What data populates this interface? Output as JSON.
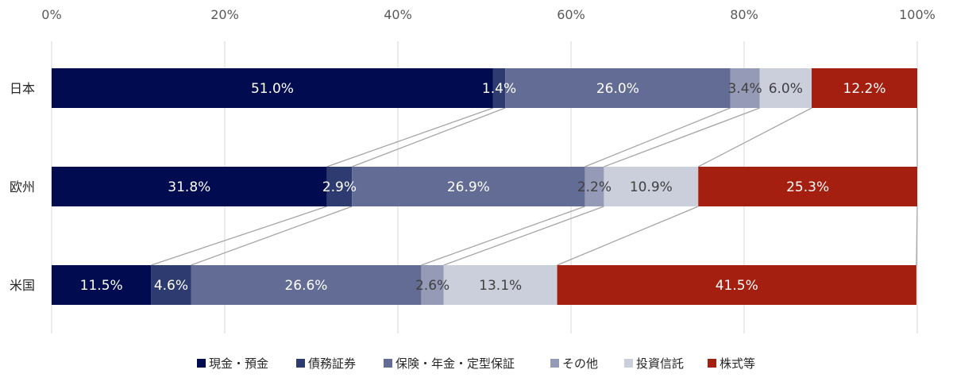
{
  "chart_data": {
    "type": "bar",
    "orientation": "horizontal",
    "stacked": "percent",
    "categories": [
      "日本",
      "欧州",
      "米国"
    ],
    "series": [
      {
        "name": "現金・預金",
        "color": "#000c4f",
        "label_color": "#ffffff",
        "values": [
          51.0,
          31.8,
          11.5
        ],
        "labels": [
          "51.0%",
          "31.8%",
          "11.5%"
        ]
      },
      {
        "name": "債務証券",
        "color": "#2e3b70",
        "label_color": "#ffffff",
        "values": [
          1.4,
          2.9,
          4.6
        ],
        "labels": [
          "1.4%",
          "2.9%",
          "4.6%"
        ]
      },
      {
        "name": "保険・年金・定型保証",
        "color": "#636c94",
        "label_color": "#ffffff",
        "values": [
          26.0,
          26.9,
          26.6
        ],
        "labels": [
          "26.0%",
          "26.9%",
          "26.6%"
        ]
      },
      {
        "name": "その他",
        "color": "#959bb6",
        "label_color": "#404040",
        "values": [
          3.4,
          2.2,
          2.6
        ],
        "labels": [
          "3.4%",
          "2.2%",
          "2.6%"
        ]
      },
      {
        "name": "投資信託",
        "color": "#cbcedb",
        "label_color": "#404040",
        "values": [
          6.0,
          10.9,
          13.1
        ],
        "labels": [
          "6.0%",
          "10.9%",
          "13.1%"
        ]
      },
      {
        "name": "株式等",
        "color": "#a51f10",
        "label_color": "#ffffff",
        "values": [
          12.2,
          25.3,
          41.5
        ],
        "labels": [
          "12.2%",
          "25.3%",
          "41.5%"
        ]
      }
    ],
    "xticks": [
      "0%",
      "20%",
      "40%",
      "60%",
      "80%",
      "100%"
    ],
    "xlim": [
      0,
      100
    ],
    "grid": true,
    "series_lines": true,
    "legend_position": "bottom"
  }
}
